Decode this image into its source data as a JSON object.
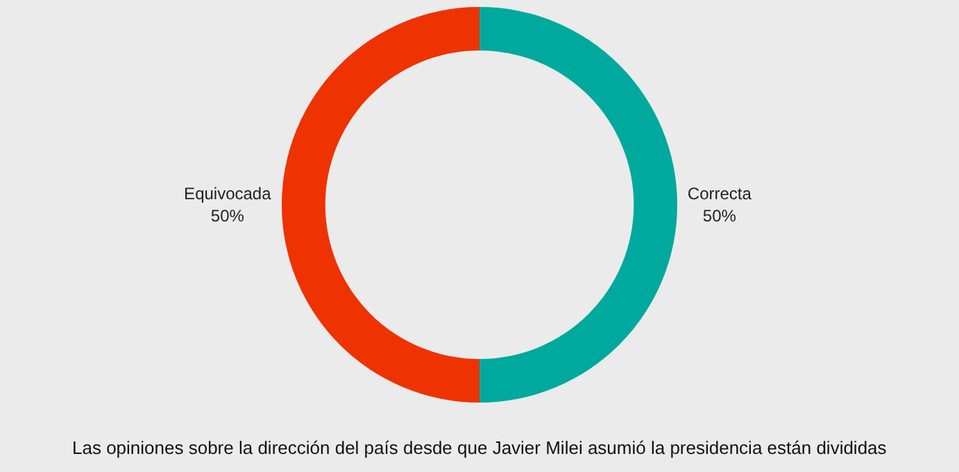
{
  "chart_data": {
    "type": "donut",
    "categories": [
      "Correcta",
      "Equivocada"
    ],
    "values": [
      50,
      50
    ],
    "colors": [
      "#00a99d",
      "#ee3300"
    ],
    "value_labels": [
      "50%",
      "50%"
    ],
    "annotations": [
      "Las opiniones sobre la dirección del país desde que Javier Milei asumió la presidencia están divididas"
    ],
    "legend": false
  }
}
